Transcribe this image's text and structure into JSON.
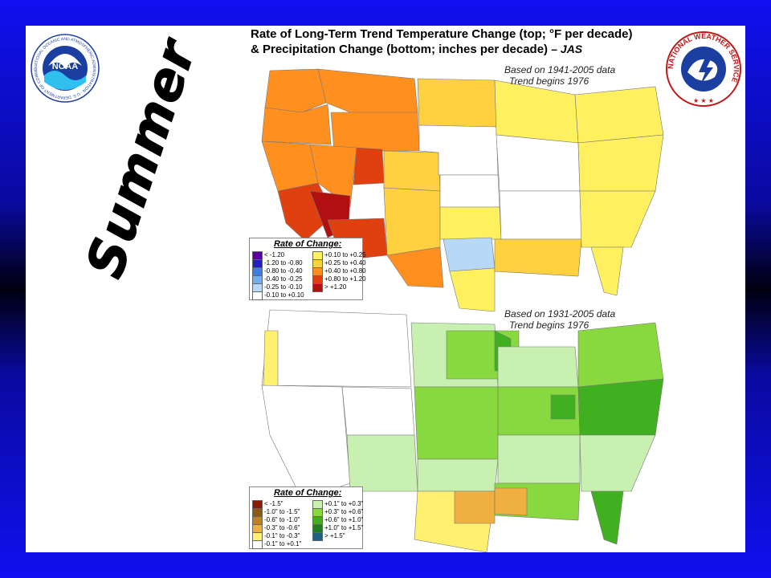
{
  "title": {
    "line1": "Rate of Long-Term Trend Temperature Change (top; °F per decade)",
    "line2": "&  Precipitation Change (bottom; inches per decade)",
    "season_tag": "– JAS"
  },
  "side_label": "Summer",
  "top_map": {
    "note_line1": "Based on 1941-2005 data",
    "note_line2": "Trend begins 1976",
    "legend_title": "Rate of Change:",
    "legend_left": [
      {
        "label": "< -1.20",
        "color": "#5a00a0"
      },
      {
        "label": "-1.20 to -0.80",
        "color": "#2020c0"
      },
      {
        "label": "-0.80 to -0.40",
        "color": "#3a80e0"
      },
      {
        "label": "-0.40 to -0.25",
        "color": "#70b0f0"
      },
      {
        "label": "-0.25 to -0.10",
        "color": "#b8d8f8"
      },
      {
        "label": "-0.10 to +0.10",
        "color": "#ffffff"
      }
    ],
    "legend_right": [
      {
        "label": "+0.10 to +0.25",
        "color": "#fff060"
      },
      {
        "label": "+0.25 to +0.40",
        "color": "#ffd040"
      },
      {
        "label": "+0.40 to +0.80",
        "color": "#ff9020"
      },
      {
        "label": "+0.80 to +1.20",
        "color": "#e04010"
      },
      {
        "label": "> +1.20",
        "color": "#b01010"
      }
    ]
  },
  "bottom_map": {
    "note_line1": "Based on 1931-2005 data",
    "note_line2": "Trend begins 1976",
    "legend_title": "Rate of Change:",
    "legend_left": [
      {
        "label": "< -1.5\"",
        "color": "#8b1a00"
      },
      {
        "label": "-1.0\" to -1.5\"",
        "color": "#8a5a10"
      },
      {
        "label": "-0.6\" to -1.0\"",
        "color": "#c08020"
      },
      {
        "label": "-0.3\" to -0.6\"",
        "color": "#f0b040"
      },
      {
        "label": "-0.1\" to -0.3\"",
        "color": "#fff070"
      },
      {
        "label": "-0.1\" to +0.1\"",
        "color": "#ffffff"
      }
    ],
    "legend_right": [
      {
        "label": "+0.1\" to +0.3\"",
        "color": "#c8f0b0"
      },
      {
        "label": "+0.3\" to +0.6\"",
        "color": "#88d840"
      },
      {
        "label": "+0.6\" to +1.0\"",
        "color": "#40b020"
      },
      {
        "label": "+1.0\" to +1.5\"",
        "color": "#208020"
      },
      {
        "label": "> +1.5\"",
        "color": "#206080"
      }
    ]
  },
  "logos": {
    "noaa_text": "NOAA",
    "noaa_ring_text": "NATIONAL OCEANIC AND ATMOSPHERIC ADMINISTRATION · U.S. DEPARTMENT OF COMMERCE",
    "nws_ring_text": "NATIONAL WEATHER SERVICE"
  }
}
